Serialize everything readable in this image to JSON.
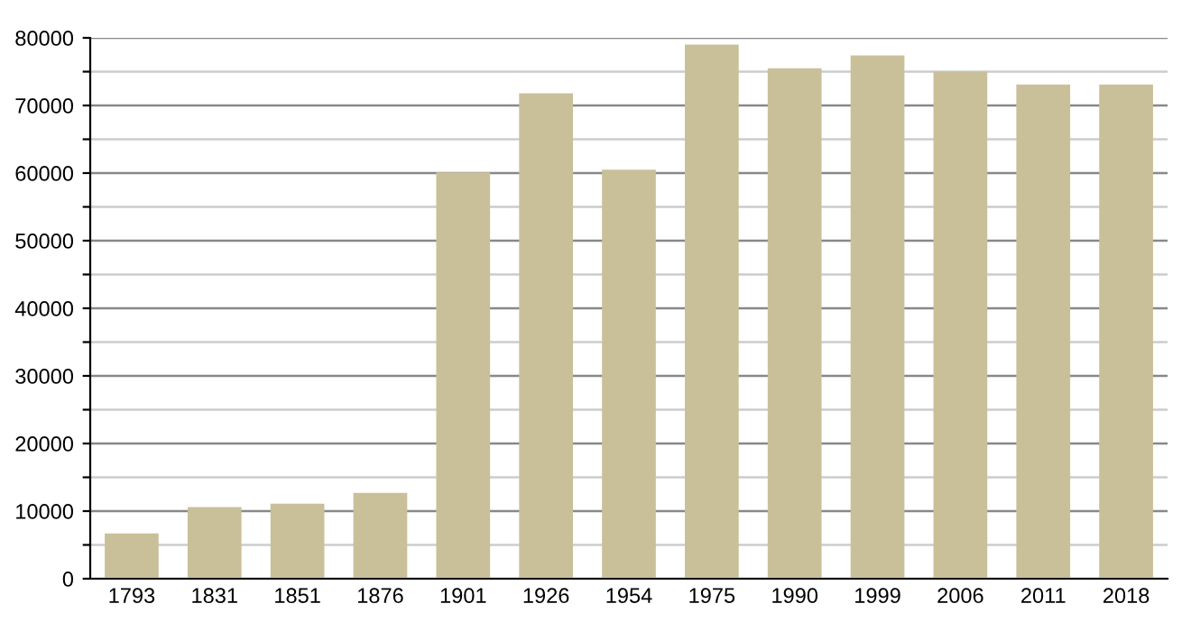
{
  "chart_data": {
    "type": "bar",
    "categories": [
      "1793",
      "1831",
      "1851",
      "1876",
      "1901",
      "1926",
      "1954",
      "1975",
      "1990",
      "1999",
      "2006",
      "2011",
      "2018"
    ],
    "values": [
      6700,
      10600,
      11100,
      12700,
      60100,
      71800,
      60500,
      79000,
      75500,
      77400,
      75000,
      73100,
      73100
    ],
    "color": "#c9c09a",
    "ylim": [
      0,
      80000
    ],
    "yticks": [
      0,
      {
        "value": 5000,
        "label": null
      },
      10000,
      {
        "value": 15000,
        "label": null
      },
      20000,
      {
        "value": 25000,
        "label": null
      },
      30000,
      {
        "value": 35000,
        "label": null
      },
      40000,
      {
        "value": 45000,
        "label": null
      },
      50000,
      {
        "value": 55000,
        "label": null
      },
      60000,
      {
        "value": 65000,
        "label": null
      },
      70000,
      {
        "value": 75000,
        "label": null
      },
      80000
    ],
    "grid": "y"
  }
}
